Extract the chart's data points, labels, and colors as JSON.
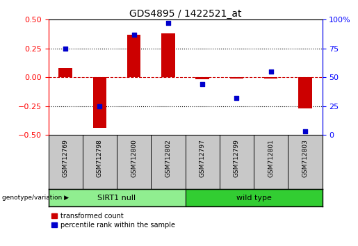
{
  "title": "GDS4895 / 1422521_at",
  "samples": [
    "GSM712769",
    "GSM712798",
    "GSM712800",
    "GSM712802",
    "GSM712797",
    "GSM712799",
    "GSM712801",
    "GSM712803"
  ],
  "transformed_count": [
    0.08,
    -0.44,
    0.37,
    0.38,
    -0.02,
    -0.01,
    -0.01,
    -0.27
  ],
  "percentile_rank": [
    75,
    25,
    87,
    97,
    44,
    32,
    55,
    3
  ],
  "groups": [
    {
      "label": "SIRT1 null",
      "indices": [
        0,
        1,
        2,
        3
      ],
      "color": "#90EE90"
    },
    {
      "label": "wild type",
      "indices": [
        4,
        5,
        6,
        7
      ],
      "color": "#32CD32"
    }
  ],
  "group_row_label": "genotype/variation",
  "ylim_left": [
    -0.5,
    0.5
  ],
  "ylim_right": [
    0,
    100
  ],
  "yticks_left": [
    -0.5,
    -0.25,
    0,
    0.25,
    0.5
  ],
  "yticks_right": [
    0,
    25,
    50,
    75,
    100
  ],
  "bar_color": "#CC0000",
  "dot_color": "#0000CC",
  "hline_color": "#CC0000",
  "dotted_color": "#000000",
  "legend_bar_label": "transformed count",
  "legend_dot_label": "percentile rank within the sample",
  "background_color": "#ffffff",
  "plot_bg_color": "#ffffff",
  "xlab_bg_color": "#c8c8c8",
  "group_colors": [
    "#90EE90",
    "#32CD32"
  ]
}
